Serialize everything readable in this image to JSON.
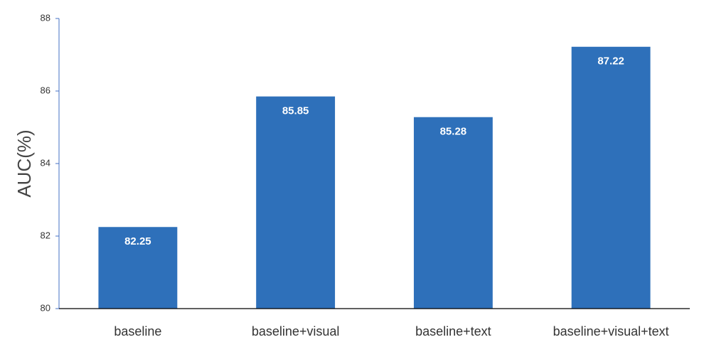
{
  "chart_data": {
    "type": "bar",
    "y_label": "AUC(%)",
    "categories": [
      "baseline",
      "baseline+visual",
      "baseline+text",
      "baseline+visual+text"
    ],
    "values": [
      82.25,
      85.85,
      85.28,
      87.22
    ],
    "color": "#2e70ba",
    "ylim": [
      80,
      88
    ],
    "yticks": [
      80,
      82,
      84,
      86,
      88
    ],
    "grid": false
  }
}
